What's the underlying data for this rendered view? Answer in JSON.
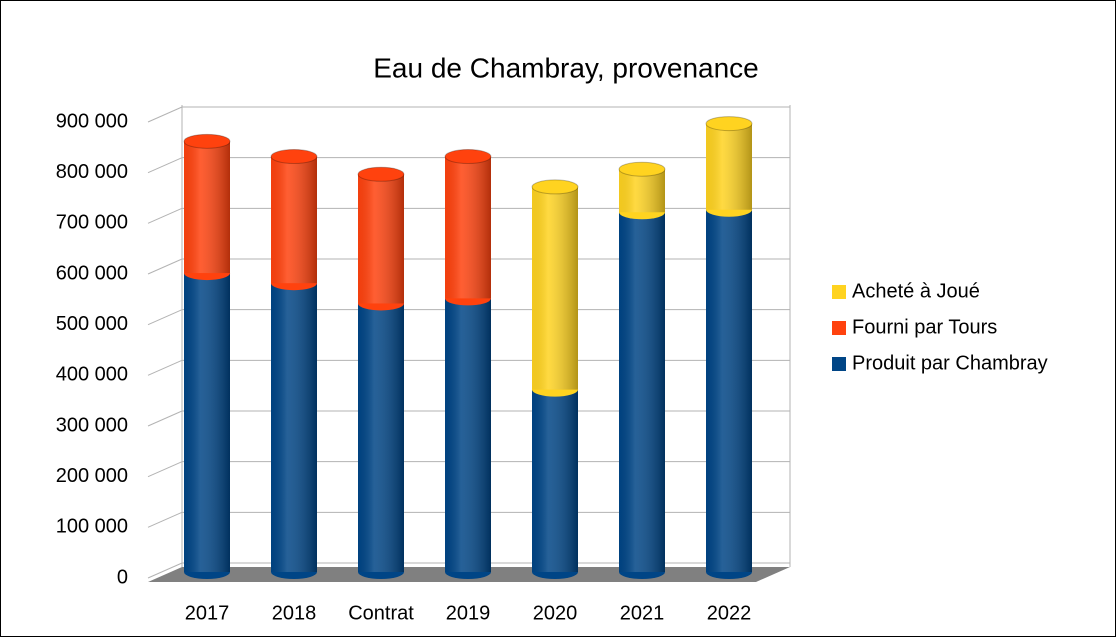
{
  "chart_data": {
    "type": "bar",
    "stacked": true,
    "title": "Eau de Chambray, provenance",
    "categories": [
      "2017",
      "2018",
      "Contrat",
      "2019",
      "2020",
      "2021",
      "2022"
    ],
    "series": [
      {
        "name": "Produit par Chambray",
        "color": "#004586",
        "values": [
          590000,
          570000,
          530000,
          540000,
          360000,
          710000,
          715000
        ]
      },
      {
        "name": "Fourni par Tours",
        "color": "#ff420e",
        "values": [
          260000,
          250000,
          255000,
          280000,
          null,
          null,
          null
        ]
      },
      {
        "name": "Acheté à Joué",
        "color": "#ffd320",
        "values": [
          null,
          null,
          null,
          null,
          400000,
          85000,
          170000
        ]
      }
    ],
    "ylim": [
      0,
      900000
    ],
    "yticks": [
      0,
      {
        "value": 100000,
        "label": "100 000"
      },
      {
        "value": 200000,
        "label": "200 000"
      },
      {
        "value": 300000,
        "label": "300 000"
      },
      {
        "value": 400000,
        "label": "400 000"
      },
      {
        "value": 500000,
        "label": "500 000"
      },
      {
        "value": 600000,
        "label": "600 000"
      },
      {
        "value": 700000,
        "label": "700 000"
      },
      {
        "value": 800000,
        "label": "800 000"
      },
      {
        "value": 900000,
        "label": "900 000"
      }
    ],
    "grid": true,
    "legend": "right"
  }
}
